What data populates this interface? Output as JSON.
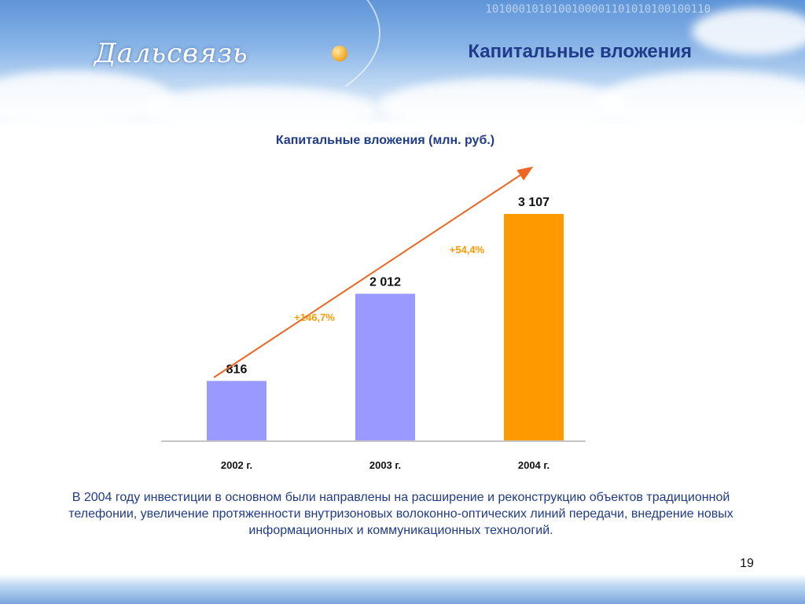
{
  "slide": {
    "title": "Капитальные вложения",
    "logo_text": "Дальсвязь",
    "binary_strip": "1010001010100100001101010100100110",
    "caption": "В 2004 году инвестиции в основном были направлены на расширение и реконструкцию объектов традиционной телефонии, увеличение протяженности внутризоновых волоконно-оптических линий передачи, внедрение новых информационных и коммуникационных технологий.",
    "page_number": "19"
  },
  "chart_data": {
    "type": "bar",
    "title": "Капитальные вложения (млн. руб.)",
    "categories": [
      "2002 г.",
      "2003 г.",
      "2004 г."
    ],
    "values": [
      816,
      2012,
      3107
    ],
    "value_labels": [
      "816",
      "2 012",
      "3 107"
    ],
    "bar_colors": [
      "#9999ff",
      "#9999ff",
      "#ff9900"
    ],
    "growth_labels": [
      "+146,7%",
      "+54,4%"
    ],
    "growth_color": "#ff9900",
    "trend_arrow_color": "#ee6622",
    "grid": false,
    "legend": "none"
  }
}
